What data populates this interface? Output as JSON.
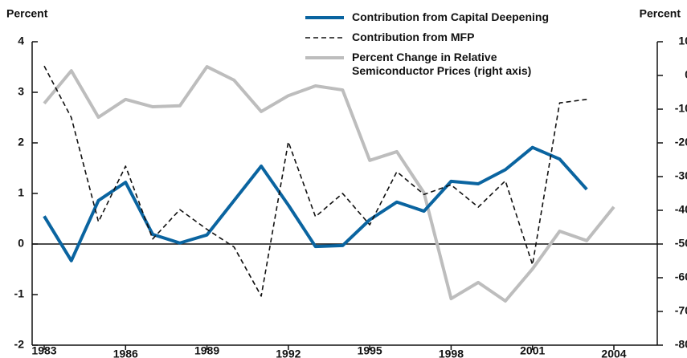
{
  "chart_data": {
    "type": "line",
    "ylabel": "Percent",
    "y2label": "Percent",
    "x": [
      1983,
      1984,
      1985,
      1986,
      1987,
      1988,
      1989,
      1990,
      1991,
      1992,
      1993,
      1994,
      1995,
      1996,
      1997,
      1998,
      1999,
      2000,
      2001,
      2002,
      2003,
      2004
    ],
    "xlim": [
      1983,
      2004
    ],
    "xticks": [
      1983,
      1986,
      1989,
      1992,
      1995,
      1998,
      2001,
      2004
    ],
    "ylim": [
      -2,
      4
    ],
    "yticks": [
      -2,
      -1,
      0,
      1,
      2,
      3,
      4
    ],
    "y2lim": [
      -80,
      10
    ],
    "y2ticks": [
      -80,
      -70,
      -60,
      -50,
      -40,
      -30,
      -20,
      -10,
      0,
      10
    ],
    "legend": "top-right",
    "series": [
      {
        "name": "Contribution from Capital Deepening",
        "color": "#0a64a0",
        "style": "solid",
        "width": 4,
        "values": [
          0.55,
          -0.33,
          0.86,
          1.22,
          0.19,
          0.02,
          0.18,
          0.86,
          1.54,
          0.77,
          -0.05,
          -0.03,
          0.48,
          0.83,
          0.65,
          1.24,
          1.19,
          1.47,
          1.91,
          1.68,
          1.08,
          null
        ]
      },
      {
        "name": "Contribution from MFP",
        "color": "#111111",
        "style": "dashed",
        "width": 1.6,
        "values": [
          3.52,
          2.5,
          0.44,
          1.54,
          0.1,
          0.68,
          0.29,
          -0.06,
          -1.03,
          2.02,
          0.54,
          1.0,
          0.38,
          1.43,
          0.98,
          1.17,
          0.73,
          1.25,
          -0.41,
          2.79,
          2.86,
          null
        ]
      },
      {
        "name": "Percent Change in Relative Semiconductor Prices (right axis)",
        "color": "#bdbdbd",
        "style": "solid",
        "width": 4,
        "axis": "y2",
        "values": [
          -8.3,
          1.4,
          -12.4,
          -7.1,
          -9.3,
          -9.0,
          2.6,
          -1.4,
          -10.7,
          -6.0,
          -3.1,
          -4.3,
          -25.2,
          -22.6,
          -34.8,
          -66.2,
          -61.4,
          -66.9,
          -57.4,
          -46.2,
          -49.0,
          -39.0
        ]
      }
    ]
  }
}
